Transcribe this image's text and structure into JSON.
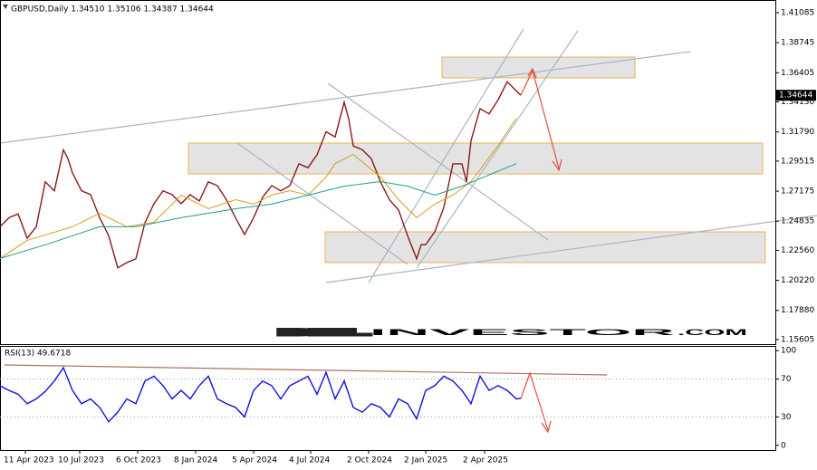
{
  "chart_data": [
    {
      "type": "line",
      "title": "GBPUSD,Daily  1.34510 1.35106 1.34387 1.34644",
      "x": [
        0,
        10,
        20,
        30,
        40,
        50,
        60,
        70,
        75,
        80,
        90,
        100,
        110,
        120,
        130,
        140,
        150,
        160,
        170,
        180,
        190,
        200,
        210,
        220,
        230,
        240,
        250,
        260,
        270,
        280,
        290,
        300,
        310,
        320,
        330,
        340,
        350,
        360,
        370,
        380,
        385,
        390,
        400,
        410,
        420,
        430,
        440,
        450,
        460,
        465,
        470,
        480,
        490,
        500,
        510,
        515,
        520,
        530,
        540,
        550,
        560,
        570,
        575
      ],
      "series": [
        {
          "color": "#8b1a1a",
          "values": [
            1.244,
            1.251,
            1.254,
            1.235,
            1.244,
            1.279,
            1.272,
            1.304,
            1.297,
            1.286,
            1.272,
            1.269,
            1.251,
            1.237,
            1.212,
            1.216,
            1.219,
            1.247,
            1.262,
            1.272,
            1.269,
            1.262,
            1.269,
            1.264,
            1.279,
            1.276,
            1.265,
            1.251,
            1.238,
            1.251,
            1.267,
            1.276,
            1.272,
            1.276,
            1.293,
            1.29,
            1.3,
            1.318,
            1.314,
            1.341,
            1.328,
            1.307,
            1.304,
            1.297,
            1.279,
            1.265,
            1.257,
            1.237,
            1.219,
            1.23,
            1.23,
            1.24,
            1.259,
            1.293,
            1.293,
            1.279,
            1.311,
            1.336,
            1.332,
            1.343,
            1.357,
            1.35,
            1.34644
          ]
        },
        {
          "color": "#d4a017",
          "x": [
            0,
            30,
            80,
            110,
            140,
            170,
            200,
            230,
            260,
            280,
            300,
            320,
            340,
            360,
            370,
            390,
            420,
            440,
            460,
            480,
            500,
            520,
            550,
            570
          ],
          "values": [
            1.2193,
            1.2334,
            1.244,
            1.2545,
            1.244,
            1.2475,
            1.2686,
            1.258,
            1.2651,
            1.2616,
            1.2686,
            1.2721,
            1.2686,
            1.2827,
            1.2932,
            1.3003,
            1.2827,
            1.2651,
            1.251,
            1.2616,
            1.2686,
            1.2792,
            1.3073,
            1.3285
          ]
        },
        {
          "color": "#1e9e8e",
          "x": [
            0,
            50,
            110,
            150,
            200,
            260,
            300,
            340,
            380,
            420,
            450,
            480,
            510,
            570
          ],
          "values": [
            1.2193,
            1.2299,
            1.244,
            1.244,
            1.251,
            1.258,
            1.2616,
            1.2686,
            1.2756,
            1.2792,
            1.2756,
            1.2686,
            1.2756,
            1.2932
          ]
        }
      ],
      "xlim": [
        0,
        856
      ],
      "ylim": [
        1.1525,
        1.42
      ],
      "yticks": [
        1.41085,
        1.38745,
        1.36405,
        {
          "value": 1.3413,
          "label": "1.34130"
        },
        {
          "value": 1.3179,
          "label": "1.31790"
        },
        1.29515,
        1.27175,
        1.24835,
        {
          "value": 1.2256,
          "label": "1.22560"
        },
        {
          "value": 1.2022,
          "label": "1.20220"
        },
        {
          "value": 1.1788,
          "label": "1.17880"
        },
        1.15605
      ],
      "price_tag": 1.34644
    },
    {
      "type": "line",
      "title": "RSI(13) 49.6718",
      "x": [
        0,
        10,
        20,
        30,
        40,
        50,
        60,
        70,
        80,
        90,
        100,
        110,
        120,
        130,
        140,
        150,
        160,
        170,
        180,
        190,
        200,
        210,
        220,
        230,
        240,
        250,
        260,
        270,
        280,
        290,
        300,
        310,
        320,
        330,
        340,
        350,
        360,
        370,
        380,
        390,
        400,
        410,
        420,
        430,
        440,
        450,
        460,
        470,
        480,
        490,
        500,
        510,
        520,
        530,
        540,
        550,
        560,
        570,
        575
      ],
      "series": [
        {
          "color": "#1010e0",
          "values": [
            63,
            58,
            54,
            44,
            49,
            57,
            68,
            82,
            58,
            44,
            49,
            40,
            25,
            35,
            49,
            44,
            68,
            73,
            63,
            49,
            58,
            49,
            63,
            73,
            49,
            44,
            40,
            30,
            58,
            68,
            63,
            49,
            63,
            68,
            73,
            54,
            77,
            49,
            68,
            40,
            35,
            44,
            40,
            30,
            49,
            44,
            28,
            58,
            63,
            73,
            68,
            58,
            44,
            73,
            58,
            63,
            58,
            49,
            49.6718
          ]
        }
      ],
      "xlim": [
        0,
        856
      ],
      "ylim": [
        -5,
        104
      ],
      "yticks": [
        100,
        70,
        30,
        0
      ],
      "levels": [
        70,
        30
      ],
      "xticks": [
        {
          "value": 28,
          "label": "11 Apr 2023"
        },
        {
          "value": 88,
          "label": "10 Jul 2023"
        },
        {
          "value": 152,
          "label": "6 Oct 2023"
        },
        {
          "value": 216,
          "label": "8 Jan 2024"
        },
        {
          "value": 280,
          "label": "5 Apr 2024"
        },
        {
          "value": 343,
          "label": "4 Jul 2024"
        },
        {
          "value": 407,
          "label": "2 Oct 2024"
        },
        {
          "value": 470,
          "label": "2 Jan 2025"
        },
        {
          "value": 535,
          "label": "2 Apr 2025"
        }
      ]
    }
  ],
  "watermark": [
    "BEL",
    "INVESTOR",
    ".COM"
  ]
}
